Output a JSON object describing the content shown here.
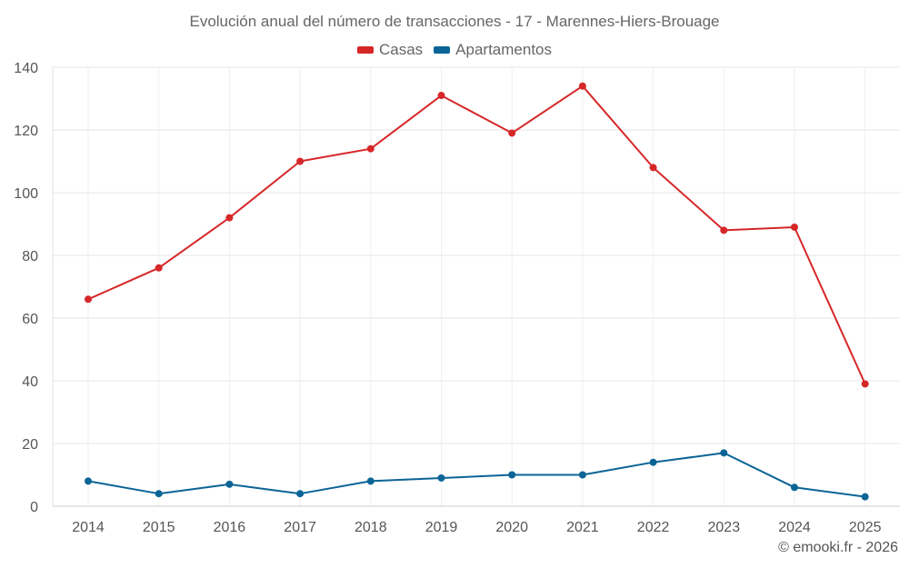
{
  "chart_data": {
    "type": "line",
    "title": "Evolución anual del número de transacciones - 17 - Marennes-Hiers-Brouage",
    "xlabel": "",
    "ylabel": "",
    "categories": [
      "2014",
      "2015",
      "2016",
      "2017",
      "2018",
      "2019",
      "2020",
      "2021",
      "2022",
      "2023",
      "2024",
      "2025"
    ],
    "ylim": [
      0,
      140
    ],
    "yticks": [
      "0",
      "20",
      "40",
      "60",
      "80",
      "100",
      "120",
      "140"
    ],
    "grid": true,
    "legend_position": "top-center",
    "series": [
      {
        "name": "Casas",
        "color": "#d62728",
        "values": [
          66,
          76,
          92,
          110,
          114,
          131,
          119,
          134,
          108,
          88,
          89,
          39
        ]
      },
      {
        "name": "Apartamentos",
        "color": "#0b6496",
        "values": [
          8,
          4,
          7,
          4,
          8,
          9,
          10,
          10,
          14,
          17,
          6,
          3
        ]
      }
    ]
  },
  "credit": "© emooki.fr - 2026"
}
